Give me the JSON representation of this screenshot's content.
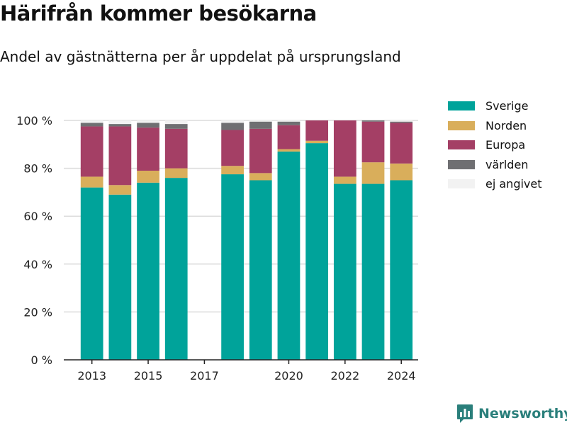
{
  "title": "Härifrån kommer besökarna",
  "subtitle": "Andel av gästnätterna per år uppdelat på ursprungsland",
  "brand": {
    "name": "Newsworthy"
  },
  "legend": {
    "items": [
      {
        "label": "Sverige",
        "color": "#00a39a"
      },
      {
        "label": "Norden",
        "color": "#d9ae5b"
      },
      {
        "label": "Europa",
        "color": "#a43f65"
      },
      {
        "label": "världen",
        "color": "#6f6f72"
      },
      {
        "label": "ej angivet",
        "color": "#f2f2f2"
      }
    ]
  },
  "chart_data": {
    "type": "bar",
    "stacked": true,
    "categories": [
      2013,
      2014,
      2015,
      2016,
      2017,
      2018,
      2019,
      2020,
      2021,
      2022,
      2023,
      2024
    ],
    "x_tick_labels": [
      "2013",
      "2015",
      "2017",
      "2020",
      "2022",
      "2024"
    ],
    "x_tick_values": [
      2013,
      2015,
      2017,
      2020,
      2022,
      2024
    ],
    "y_ticks": [
      0,
      20,
      40,
      60,
      80,
      100
    ],
    "y_tick_labels": [
      "0 %",
      "20 %",
      "40 %",
      "60 %",
      "80 %",
      "100 %"
    ],
    "ylim": [
      0,
      100
    ],
    "grid": true,
    "legend_position": "top-right",
    "series": [
      {
        "name": "Sverige",
        "color": "#00a39a",
        "values": [
          72,
          69,
          74,
          76,
          null,
          77.5,
          75,
          87,
          90.5,
          73.5,
          73.5,
          75
        ]
      },
      {
        "name": "Norden",
        "color": "#d9ae5b",
        "values": [
          4.5,
          4,
          5,
          4,
          null,
          3.5,
          3,
          1,
          1,
          3,
          9,
          7
        ]
      },
      {
        "name": "Europa",
        "color": "#a43f65",
        "values": [
          21,
          24.5,
          18,
          16.5,
          null,
          15,
          18.5,
          10,
          8.5,
          23.5,
          17,
          17
        ]
      },
      {
        "name": "världen",
        "color": "#6f6f72",
        "values": [
          1.5,
          1,
          2,
          2,
          null,
          3,
          3,
          1.5,
          0,
          0,
          0.5,
          0.5
        ]
      },
      {
        "name": "ej angivet",
        "color": "#f2f2f2",
        "values": [
          1,
          1.5,
          1,
          1.5,
          null,
          1,
          0.5,
          0.5,
          0,
          0,
          0,
          0.5
        ]
      }
    ]
  }
}
